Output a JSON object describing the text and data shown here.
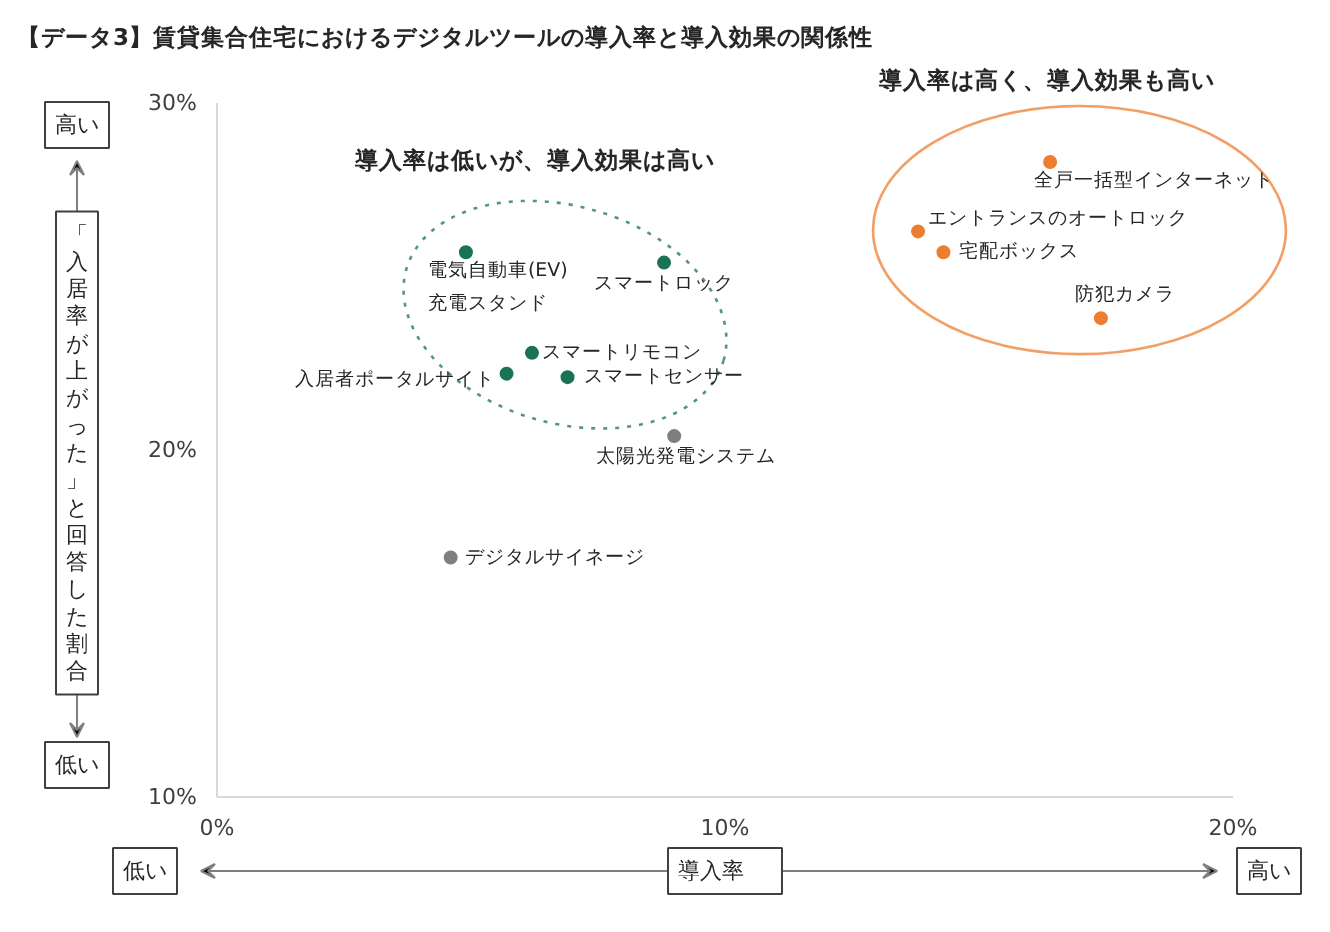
{
  "chart_data": {
    "type": "scatter",
    "title": "【データ3】賃貸集合住宅におけるデジタルツールの導入率と導入効果の関係性",
    "xlabel": "導入率",
    "ylabel": "「入居率が上がった」と回答した割合",
    "xlim": [
      0,
      20
    ],
    "ylim": [
      10,
      30
    ],
    "xticks": [
      {
        "value": 0,
        "label": "0%"
      },
      {
        "value": 10,
        "label": "10%"
      },
      {
        "value": 20,
        "label": "20%"
      }
    ],
    "yticks": [
      {
        "value": 10,
        "label": "10%"
      },
      {
        "value": 20,
        "label": "20%"
      },
      {
        "value": 30,
        "label": "30%"
      }
    ],
    "grid": false,
    "legend": false,
    "marker": "circle",
    "series": [
      {
        "name": "電気自動車(EV)\n充電スタンド",
        "color": "#1a7353",
        "x": [
          4.9
        ],
        "values": [
          25.7
        ]
      },
      {
        "name": "スマートロック",
        "color": "#1a7353",
        "x": [
          8.8
        ],
        "values": [
          25.4
        ]
      },
      {
        "name": "スマートリモコン",
        "color": "#1a7353",
        "x": [
          6.2
        ],
        "values": [
          22.8
        ]
      },
      {
        "name": "入居者ポータルサイト",
        "color": "#1a7353",
        "x": [
          5.7
        ],
        "values": [
          22.2
        ]
      },
      {
        "name": "スマートセンサー",
        "color": "#1a7353",
        "x": [
          6.9
        ],
        "values": [
          22.1
        ]
      },
      {
        "name": "太陽光発電システム",
        "color": "#7f7f7f",
        "x": [
          9.0
        ],
        "values": [
          20.4
        ]
      },
      {
        "name": "デジタルサイネージ",
        "color": "#7f7f7f",
        "x": [
          4.6
        ],
        "values": [
          16.9
        ]
      },
      {
        "name": "全戸一括型インターネット",
        "color": "#ed7d31",
        "x": [
          16.4
        ],
        "values": [
          28.3
        ]
      },
      {
        "name": "エントランスのオートロック",
        "color": "#ed7d31",
        "x": [
          13.8
        ],
        "values": [
          26.3
        ]
      },
      {
        "name": "宅配ボックス",
        "color": "#ed7d31",
        "x": [
          14.3
        ],
        "values": [
          25.7
        ]
      },
      {
        "name": "防犯カメラ",
        "color": "#ed7d31",
        "x": [
          17.4
        ],
        "values": [
          23.8
        ]
      }
    ],
    "annotations": [
      "導入率は低いが、導入効果は高い",
      "導入率は高く、導入効果も高い",
      "高い",
      "低い",
      "低い",
      "高い"
    ]
  }
}
